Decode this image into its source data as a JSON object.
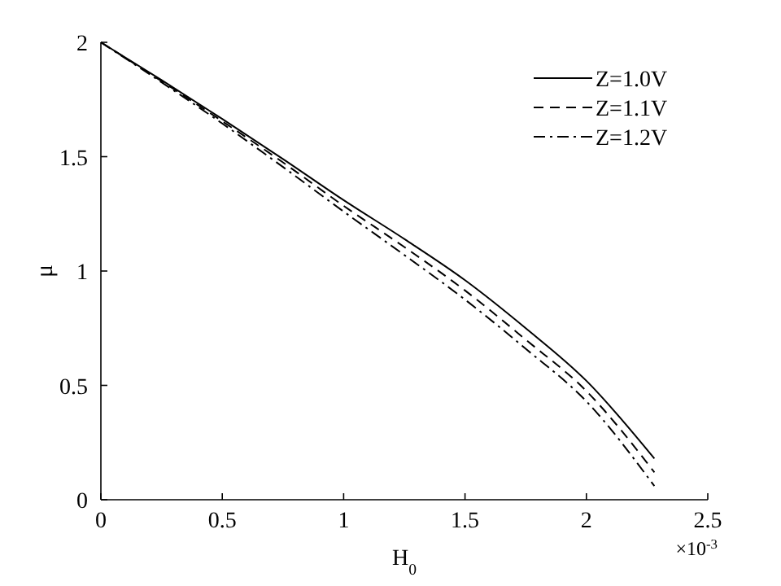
{
  "chart_data": {
    "type": "line",
    "xlabel": "H$_{0}$",
    "ylabel": "μ",
    "annotations": [
      "×10$^{-3}$"
    ],
    "x": [
      0,
      0.25,
      0.5,
      0.75,
      1,
      1.25,
      1.5,
      1.75,
      2,
      2.28
    ],
    "xlim": [
      0,
      2.5
    ],
    "xticks": [
      0,
      0.5,
      1,
      1.5,
      2,
      2.5
    ],
    "ylim": [
      0,
      2
    ],
    "yticks": [
      0,
      0.5,
      1,
      1.5,
      2
    ],
    "legend": "top right",
    "grid": false,
    "series": [
      {
        "name": "Z=1.0V",
        "color": "#000000",
        "line_style": "solid",
        "values": [
          2,
          1.835,
          1.665,
          1.49,
          1.31,
          1.14,
          0.96,
          0.75,
          0.52,
          0.18
        ]
      },
      {
        "name": "Z=1.1V",
        "color": "#000000",
        "line_style": "dashed",
        "values": [
          2,
          1.83,
          1.655,
          1.475,
          1.285,
          1.105,
          0.915,
          0.7,
          0.475,
          0.12
        ]
      },
      {
        "name": "Z=1.2V",
        "color": "#000000",
        "line_style": "dashdot",
        "values": [
          2,
          1.825,
          1.645,
          1.455,
          1.26,
          1.07,
          0.875,
          0.66,
          0.43,
          0.06
        ]
      }
    ]
  }
}
